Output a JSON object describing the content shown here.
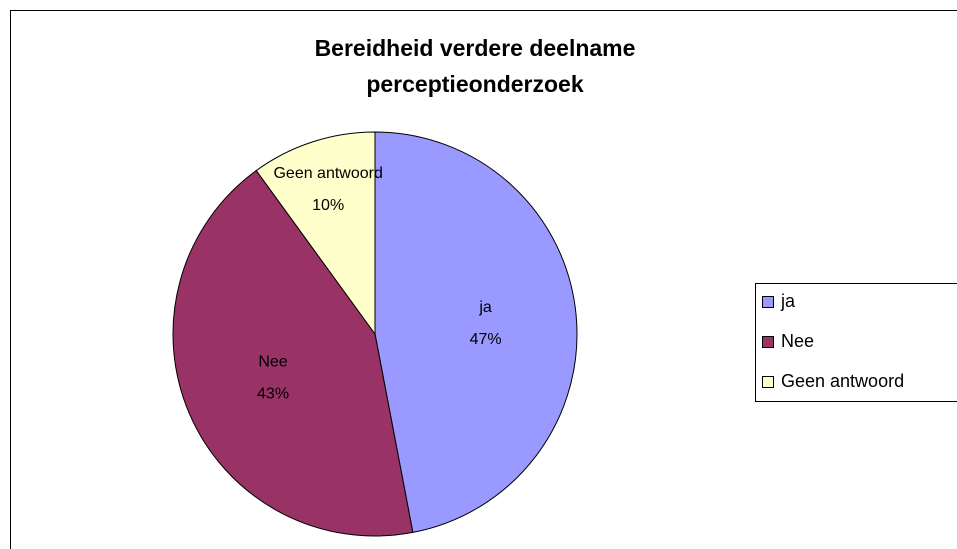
{
  "chart_data": {
    "type": "pie",
    "title": "Bereidheid verdere deelname perceptieonderzoek",
    "categories": [
      "ja",
      "Nee",
      "Geen antwoord"
    ],
    "values": [
      47,
      43,
      10
    ],
    "value_labels": [
      "47%",
      "43%",
      "10%"
    ],
    "colors": [
      "#9999ff",
      "#993366",
      "#ffffcc"
    ],
    "legend": "right"
  }
}
